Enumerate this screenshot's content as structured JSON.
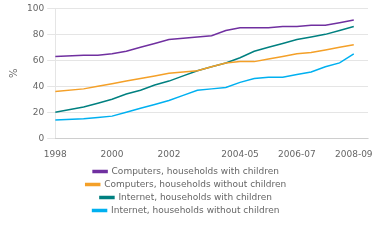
{
  "chart_data": {
    "type": "line",
    "y_label": "%",
    "x": [
      1998,
      1999,
      1999.5,
      2000,
      2000.5,
      2001,
      2001.5,
      2002,
      2002.5,
      2003,
      2003.5,
      2004,
      2004.5,
      2005,
      2005.5,
      2006,
      2006.5,
      2007,
      2007.5,
      2008,
      2008.5
    ],
    "series": [
      {
        "name": "Computers, households with children",
        "color": "#7030a0",
        "values": [
          63,
          64,
          64,
          65,
          67,
          70,
          73,
          76,
          77,
          78,
          79,
          83,
          85,
          85,
          85,
          86,
          86,
          87,
          87,
          89,
          91
        ]
      },
      {
        "name": "Computers, households without children",
        "color": "#f4a028",
        "values": [
          36,
          38,
          40,
          42,
          44,
          46,
          48,
          50,
          51,
          52,
          55,
          58,
          59,
          59,
          61,
          63,
          65,
          66,
          68,
          70,
          72
        ]
      },
      {
        "name": "Internet, households with children",
        "color": "#008080",
        "values": [
          20,
          24,
          27,
          30,
          34,
          37,
          41,
          44,
          48,
          52,
          55,
          58,
          62,
          67,
          70,
          73,
          76,
          78,
          80,
          83,
          86
        ]
      },
      {
        "name": "Internet, households without children",
        "color": "#00b0f0",
        "values": [
          14,
          15,
          16,
          17,
          20,
          23,
          26,
          29,
          33,
          37,
          38,
          39,
          43,
          46,
          47,
          47,
          49,
          51,
          55,
          58,
          65
        ]
      }
    ],
    "xlim": [
      1998,
      2009
    ],
    "xticks": [
      1998,
      2000,
      2002,
      {
        "value": 2004.5,
        "label": "2004-05"
      },
      {
        "value": 2006.5,
        "label": "2006-07"
      },
      {
        "value": 2008.5,
        "label": "2008-09"
      }
    ],
    "ylim": [
      0,
      100
    ],
    "yticks": [
      0,
      20,
      40,
      60,
      80,
      100
    ],
    "grid": "y",
    "legend": "bottom"
  }
}
